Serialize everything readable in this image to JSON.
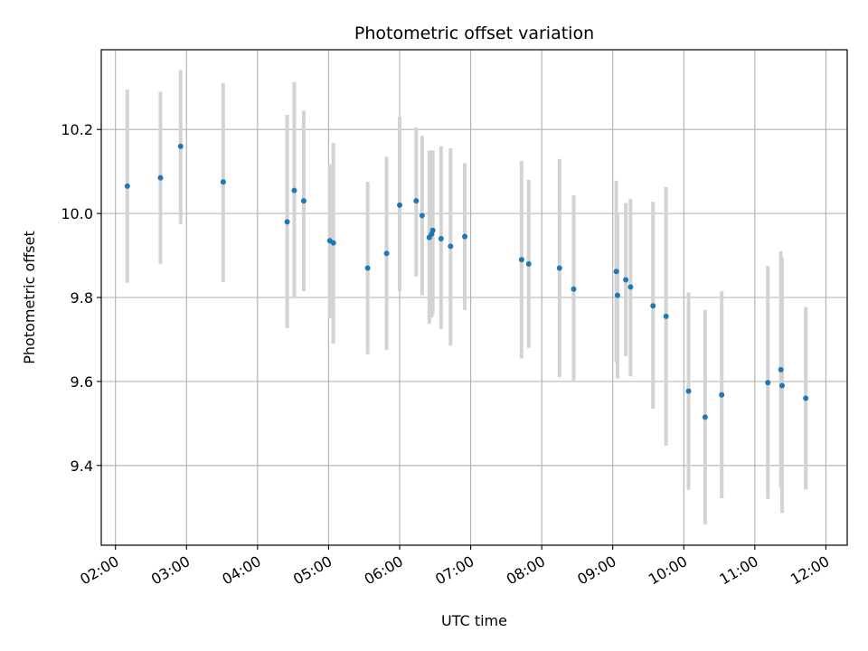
{
  "chart_data": {
    "type": "scatter",
    "title": "Photometric offset variation",
    "xlabel": "UTC time",
    "ylabel": "Photometric offset",
    "x_unit": "UTC time (HH:MM)",
    "xlim": [
      "01:48",
      "12:18"
    ],
    "ylim": [
      9.21,
      10.39
    ],
    "grid": true,
    "x_tick_labels": [
      "02:00",
      "03:00",
      "04:00",
      "05:00",
      "06:00",
      "07:00",
      "08:00",
      "09:00",
      "10:00",
      "11:00",
      "12:00"
    ],
    "y_tick_labels": [
      "9.4",
      "9.6",
      "9.8",
      "10.0",
      "10.2"
    ],
    "y_ticks": [
      9.4,
      9.6,
      9.8,
      10.0,
      10.2
    ],
    "colors": {
      "point": "#1f77b4",
      "errorbar": "#d3d3d3",
      "grid": "#b0b0b0"
    },
    "points": [
      {
        "x": "02:10",
        "y": 10.065,
        "lo": 9.835,
        "hi": 10.295
      },
      {
        "x": "02:38",
        "y": 10.085,
        "lo": 9.88,
        "hi": 10.29
      },
      {
        "x": "02:55",
        "y": 10.16,
        "lo": 9.975,
        "hi": 10.342
      },
      {
        "x": "03:31",
        "y": 10.075,
        "lo": 9.837,
        "hi": 10.31
      },
      {
        "x": "04:25",
        "y": 9.98,
        "lo": 9.727,
        "hi": 10.235
      },
      {
        "x": "04:31",
        "y": 10.055,
        "lo": 9.8,
        "hi": 10.313
      },
      {
        "x": "04:39",
        "y": 10.03,
        "lo": 9.815,
        "hi": 10.245
      },
      {
        "x": "05:01",
        "y": 9.935,
        "lo": 9.75,
        "hi": 10.117
      },
      {
        "x": "05:04",
        "y": 9.93,
        "lo": 9.69,
        "hi": 10.168
      },
      {
        "x": "05:33",
        "y": 9.87,
        "lo": 9.665,
        "hi": 10.075
      },
      {
        "x": "05:49",
        "y": 9.905,
        "lo": 9.675,
        "hi": 10.135
      },
      {
        "x": "06:00",
        "y": 10.02,
        "lo": 9.815,
        "hi": 10.23
      },
      {
        "x": "06:14",
        "y": 10.03,
        "lo": 9.85,
        "hi": 10.205
      },
      {
        "x": "06:19",
        "y": 9.995,
        "lo": 9.805,
        "hi": 10.185
      },
      {
        "x": "06:25",
        "y": 9.943,
        "lo": 9.737,
        "hi": 10.15
      },
      {
        "x": "06:27",
        "y": 9.951,
        "lo": 9.752,
        "hi": 10.15
      },
      {
        "x": "06:28",
        "y": 9.96,
        "lo": 9.76,
        "hi": 10.15
      },
      {
        "x": "06:35",
        "y": 9.94,
        "lo": 9.725,
        "hi": 10.16
      },
      {
        "x": "06:43",
        "y": 9.922,
        "lo": 9.685,
        "hi": 10.155
      },
      {
        "x": "06:55",
        "y": 9.945,
        "lo": 9.77,
        "hi": 10.12
      },
      {
        "x": "07:43",
        "y": 9.89,
        "lo": 9.655,
        "hi": 10.125
      },
      {
        "x": "07:49",
        "y": 9.88,
        "lo": 9.68,
        "hi": 10.08
      },
      {
        "x": "08:15",
        "y": 9.87,
        "lo": 9.61,
        "hi": 10.13
      },
      {
        "x": "08:27",
        "y": 9.82,
        "lo": 9.6,
        "hi": 10.043
      },
      {
        "x": "09:03",
        "y": 9.862,
        "lo": 9.645,
        "hi": 10.078
      },
      {
        "x": "09:04",
        "y": 9.805,
        "lo": 9.607,
        "hi": 10.003
      },
      {
        "x": "09:11",
        "y": 9.842,
        "lo": 9.66,
        "hi": 10.025
      },
      {
        "x": "09:15",
        "y": 9.825,
        "lo": 9.612,
        "hi": 10.035
      },
      {
        "x": "09:34",
        "y": 9.78,
        "lo": 9.535,
        "hi": 10.028
      },
      {
        "x": "09:45",
        "y": 9.755,
        "lo": 9.447,
        "hi": 10.063
      },
      {
        "x": "10:04",
        "y": 9.577,
        "lo": 9.342,
        "hi": 9.812
      },
      {
        "x": "10:18",
        "y": 9.515,
        "lo": 9.26,
        "hi": 9.77
      },
      {
        "x": "10:32",
        "y": 9.568,
        "lo": 9.322,
        "hi": 9.815
      },
      {
        "x": "11:11",
        "y": 9.597,
        "lo": 9.32,
        "hi": 9.875
      },
      {
        "x": "11:22",
        "y": 9.628,
        "lo": 9.347,
        "hi": 9.91
      },
      {
        "x": "11:23",
        "y": 9.59,
        "lo": 9.287,
        "hi": 9.895
      },
      {
        "x": "11:43",
        "y": 9.56,
        "lo": 9.343,
        "hi": 9.777
      }
    ]
  }
}
